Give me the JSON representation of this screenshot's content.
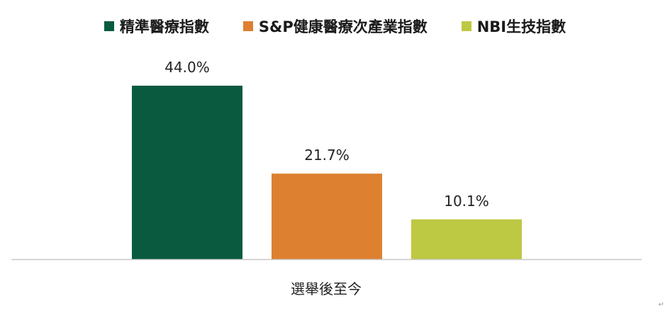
{
  "chart_data": {
    "type": "bar",
    "categories": [
      "選舉後至今"
    ],
    "series": [
      {
        "name": "精準醫療指數",
        "color": "#0a5a40",
        "values": [
          44.0
        ],
        "label": "44.0%"
      },
      {
        "name": "S&P健康醫療次產業指數",
        "color": "#dd8030",
        "values": [
          21.7
        ],
        "label": "21.7%"
      },
      {
        "name": "NBI生技指數",
        "color": "#bdc843",
        "values": [
          10.1
        ],
        "label": "10.1%"
      }
    ],
    "title": "",
    "xlabel": "",
    "ylabel": "",
    "ylim": [
      0,
      50
    ],
    "grid": false,
    "legend": "top-center"
  },
  "decor": {
    "enter_mark": "↵"
  }
}
